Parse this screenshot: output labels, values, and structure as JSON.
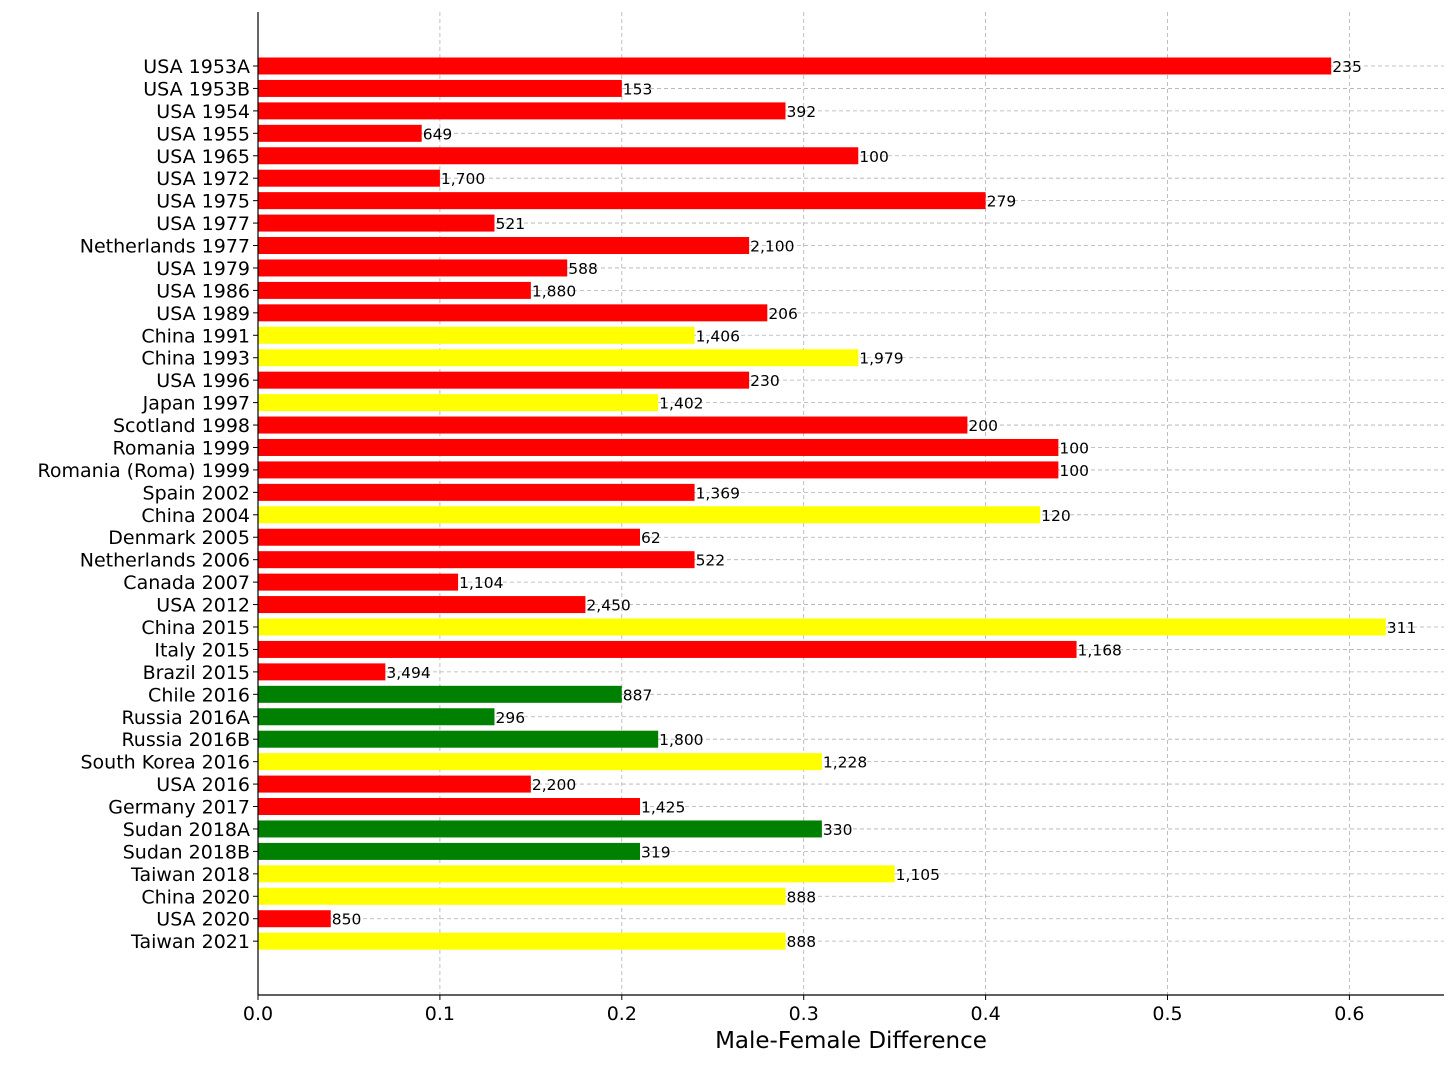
{
  "chart_data": {
    "type": "bar",
    "orientation": "horizontal",
    "title": "",
    "xlabel": "Male-Female Difference",
    "ylabel": "",
    "xlim": [
      0,
      0.652
    ],
    "xticks": [
      "0.0",
      "0.1",
      "0.2",
      "0.3",
      "0.4",
      "0.5",
      "0.6"
    ],
    "grid": true,
    "colors": {
      "red": "#ff0000",
      "yellow": "#ffff00",
      "green": "#008000"
    },
    "bars": [
      {
        "category": "USA 1953A",
        "value": 0.59,
        "label": "235",
        "color": "red"
      },
      {
        "category": "USA 1953B",
        "value": 0.2,
        "label": "153",
        "color": "red"
      },
      {
        "category": "USA 1954",
        "value": 0.29,
        "label": "392",
        "color": "red"
      },
      {
        "category": "USA 1955",
        "value": 0.09,
        "label": "649",
        "color": "red"
      },
      {
        "category": "USA 1965",
        "value": 0.33,
        "label": "100",
        "color": "red"
      },
      {
        "category": "USA 1972",
        "value": 0.1,
        "label": "1,700",
        "color": "red"
      },
      {
        "category": "USA 1975",
        "value": 0.4,
        "label": "279",
        "color": "red"
      },
      {
        "category": "USA 1977",
        "value": 0.13,
        "label": "521",
        "color": "red"
      },
      {
        "category": "Netherlands 1977",
        "value": 0.27,
        "label": "2,100",
        "color": "red"
      },
      {
        "category": "USA 1979",
        "value": 0.17,
        "label": "588",
        "color": "red"
      },
      {
        "category": "USA 1986",
        "value": 0.15,
        "label": "1,880",
        "color": "red"
      },
      {
        "category": "USA 1989",
        "value": 0.28,
        "label": "206",
        "color": "red"
      },
      {
        "category": "China 1991",
        "value": 0.24,
        "label": "1,406",
        "color": "yellow"
      },
      {
        "category": "China 1993",
        "value": 0.33,
        "label": "1,979",
        "color": "yellow"
      },
      {
        "category": "USA 1996",
        "value": 0.27,
        "label": "230",
        "color": "red"
      },
      {
        "category": "Japan 1997",
        "value": 0.22,
        "label": "1,402",
        "color": "yellow"
      },
      {
        "category": "Scotland 1998",
        "value": 0.39,
        "label": "200",
        "color": "red"
      },
      {
        "category": "Romania 1999",
        "value": 0.44,
        "label": "100",
        "color": "red"
      },
      {
        "category": "Romania (Roma) 1999",
        "value": 0.44,
        "label": "100",
        "color": "red"
      },
      {
        "category": "Spain 2002",
        "value": 0.24,
        "label": "1,369",
        "color": "red"
      },
      {
        "category": "China 2004",
        "value": 0.43,
        "label": "120",
        "color": "yellow"
      },
      {
        "category": "Denmark 2005",
        "value": 0.21,
        "label": "62",
        "color": "red"
      },
      {
        "category": "Netherlands 2006",
        "value": 0.24,
        "label": "522",
        "color": "red"
      },
      {
        "category": "Canada 2007",
        "value": 0.11,
        "label": "1,104",
        "color": "red"
      },
      {
        "category": "USA 2012",
        "value": 0.18,
        "label": "2,450",
        "color": "red"
      },
      {
        "category": "China 2015",
        "value": 0.62,
        "label": "311",
        "color": "yellow"
      },
      {
        "category": "Italy 2015",
        "value": 0.45,
        "label": "1,168",
        "color": "red"
      },
      {
        "category": "Brazil 2015",
        "value": 0.07,
        "label": "3,494",
        "color": "red"
      },
      {
        "category": "Chile 2016",
        "value": 0.2,
        "label": "887",
        "color": "green"
      },
      {
        "category": "Russia 2016A",
        "value": 0.13,
        "label": "296",
        "color": "green"
      },
      {
        "category": "Russia 2016B",
        "value": 0.22,
        "label": "1,800",
        "color": "green"
      },
      {
        "category": "South Korea 2016",
        "value": 0.31,
        "label": "1,228",
        "color": "yellow"
      },
      {
        "category": "USA 2016",
        "value": 0.15,
        "label": "2,200",
        "color": "red"
      },
      {
        "category": "Germany 2017",
        "value": 0.21,
        "label": "1,425",
        "color": "red"
      },
      {
        "category": "Sudan 2018A",
        "value": 0.31,
        "label": "330",
        "color": "green"
      },
      {
        "category": "Sudan 2018B",
        "value": 0.21,
        "label": "319",
        "color": "green"
      },
      {
        "category": "Taiwan 2018",
        "value": 0.35,
        "label": "1,105",
        "color": "yellow"
      },
      {
        "category": "China 2020",
        "value": 0.29,
        "label": "888",
        "color": "yellow"
      },
      {
        "category": "USA 2020",
        "value": 0.04,
        "label": "850",
        "color": "red"
      },
      {
        "category": "Taiwan 2021",
        "value": 0.29,
        "label": "888",
        "color": "yellow"
      }
    ]
  }
}
